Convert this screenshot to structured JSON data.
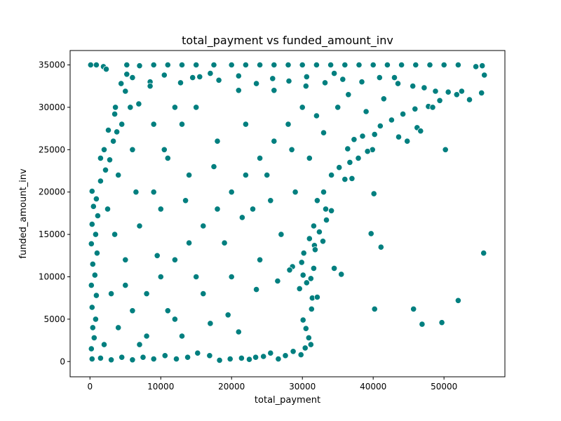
{
  "chart_data": {
    "type": "scatter",
    "title": "total_payment vs funded_amount_inv",
    "xlabel": "total_payment",
    "ylabel": "funded_amount_inv",
    "xlim": [
      -2800,
      58600
    ],
    "ylim": [
      -1800,
      36700
    ],
    "xticks": [
      0,
      10000,
      20000,
      30000,
      40000,
      50000
    ],
    "yticks": [
      0,
      5000,
      10000,
      15000,
      20000,
      25000,
      30000,
      35000
    ],
    "grid": false,
    "marker_color": "#007f7f",
    "marker_edge": "#ffffff",
    "points": [
      [
        100,
        35000
      ],
      [
        900,
        35000
      ],
      [
        1900,
        34800
      ],
      [
        2300,
        34500
      ],
      [
        5200,
        35000
      ],
      [
        7000,
        34900
      ],
      [
        9000,
        35000
      ],
      [
        11000,
        35000
      ],
      [
        13000,
        35000
      ],
      [
        15000,
        35000
      ],
      [
        17500,
        35000
      ],
      [
        20000,
        35000
      ],
      [
        22000,
        35000
      ],
      [
        24000,
        35000
      ],
      [
        26000,
        35000
      ],
      [
        28000,
        35000
      ],
      [
        30000,
        35000
      ],
      [
        32000,
        35000
      ],
      [
        34000,
        35000
      ],
      [
        36000,
        35000
      ],
      [
        38000,
        35000
      ],
      [
        40000,
        35000
      ],
      [
        42000,
        35000
      ],
      [
        44000,
        35000
      ],
      [
        46000,
        35000
      ],
      [
        48000,
        35000
      ],
      [
        50000,
        35000
      ],
      [
        52000,
        35000
      ],
      [
        54500,
        34800
      ],
      [
        55400,
        34900
      ],
      [
        6000,
        33500
      ],
      [
        8500,
        33000
      ],
      [
        10500,
        33800
      ],
      [
        12800,
        32900
      ],
      [
        15500,
        33600
      ],
      [
        18200,
        33200
      ],
      [
        21000,
        33700
      ],
      [
        23500,
        32800
      ],
      [
        25800,
        33400
      ],
      [
        28100,
        33100
      ],
      [
        30600,
        33600
      ],
      [
        33200,
        32900
      ],
      [
        35700,
        33300
      ],
      [
        38400,
        33000
      ],
      [
        40900,
        33500
      ],
      [
        43500,
        32800
      ],
      [
        45600,
        32500
      ],
      [
        47200,
        32300
      ],
      [
        48800,
        31900
      ],
      [
        50600,
        31800
      ],
      [
        52500,
        31900
      ],
      [
        55300,
        31700
      ],
      [
        55700,
        33800
      ],
      [
        49400,
        30800
      ],
      [
        51800,
        31500
      ],
      [
        53600,
        30900
      ],
      [
        47800,
        30100
      ],
      [
        45900,
        29800
      ],
      [
        44200,
        29200
      ],
      [
        42600,
        28500
      ],
      [
        41000,
        27800
      ],
      [
        43600,
        26500
      ],
      [
        44800,
        26000
      ],
      [
        46200,
        27600
      ],
      [
        46700,
        27200
      ],
      [
        48400,
        30000
      ],
      [
        40200,
        26800
      ],
      [
        38500,
        26600
      ],
      [
        37300,
        26200
      ],
      [
        36400,
        25100
      ],
      [
        39900,
        25000
      ],
      [
        39200,
        24800
      ],
      [
        37900,
        24000
      ],
      [
        36700,
        23500
      ],
      [
        35200,
        22900
      ],
      [
        34100,
        22000
      ],
      [
        36000,
        21500
      ],
      [
        37000,
        21600
      ],
      [
        33000,
        20000
      ],
      [
        32100,
        19000
      ],
      [
        33300,
        18000
      ],
      [
        34100,
        17800
      ],
      [
        33400,
        16700
      ],
      [
        31600,
        16000
      ],
      [
        32400,
        15300
      ],
      [
        31000,
        14500
      ],
      [
        32900,
        14200
      ],
      [
        31700,
        13700
      ],
      [
        30200,
        12800
      ],
      [
        31800,
        13200
      ],
      [
        29900,
        11700
      ],
      [
        28600,
        11200
      ],
      [
        28200,
        10800
      ],
      [
        30100,
        10200
      ],
      [
        31600,
        11000
      ],
      [
        31200,
        9800
      ],
      [
        30600,
        9300
      ],
      [
        29600,
        8600
      ],
      [
        31400,
        7500
      ],
      [
        32100,
        7600
      ],
      [
        31300,
        6200
      ],
      [
        30100,
        4900
      ],
      [
        30500,
        3900
      ],
      [
        30900,
        2800
      ],
      [
        31200,
        2000
      ],
      [
        30400,
        1600
      ],
      [
        29800,
        800
      ],
      [
        28700,
        1200
      ],
      [
        27600,
        700
      ],
      [
        26600,
        300
      ],
      [
        25500,
        1000
      ],
      [
        24500,
        600
      ],
      [
        23400,
        500
      ],
      [
        22500,
        250
      ],
      [
        21400,
        400
      ],
      [
        19800,
        300
      ],
      [
        18300,
        150
      ],
      [
        16900,
        700
      ],
      [
        15200,
        1000
      ],
      [
        13800,
        500
      ],
      [
        12200,
        300
      ],
      [
        10600,
        700
      ],
      [
        9000,
        300
      ],
      [
        7500,
        500
      ],
      [
        6000,
        200
      ],
      [
        4500,
        500
      ],
      [
        3000,
        200
      ],
      [
        1500,
        400
      ],
      [
        300,
        300
      ],
      [
        200,
        1500
      ],
      [
        600,
        2800
      ],
      [
        400,
        4000
      ],
      [
        800,
        5000
      ],
      [
        300,
        6400
      ],
      [
        900,
        7800
      ],
      [
        200,
        9000
      ],
      [
        700,
        10200
      ],
      [
        400,
        11500
      ],
      [
        1000,
        12800
      ],
      [
        200,
        13900
      ],
      [
        800,
        15000
      ],
      [
        300,
        16200
      ],
      [
        1100,
        17200
      ],
      [
        500,
        18300
      ],
      [
        900,
        19200
      ],
      [
        300,
        20100
      ],
      [
        1500,
        21300
      ],
      [
        2200,
        22600
      ],
      [
        2800,
        23800
      ],
      [
        2000,
        25000
      ],
      [
        3300,
        26000
      ],
      [
        3800,
        27100
      ],
      [
        2600,
        27300
      ],
      [
        4500,
        28000
      ],
      [
        3500,
        29200
      ],
      [
        5700,
        30000
      ],
      [
        6900,
        30400
      ],
      [
        5000,
        31900
      ],
      [
        4400,
        32800
      ],
      [
        3600,
        30000
      ],
      [
        5200,
        33900
      ],
      [
        34500,
        11000
      ],
      [
        35500,
        10300
      ],
      [
        39700,
        15100
      ],
      [
        40100,
        19800
      ],
      [
        40200,
        6200
      ],
      [
        41100,
        13500
      ],
      [
        45700,
        6200
      ],
      [
        46900,
        4400
      ],
      [
        49700,
        4600
      ],
      [
        50200,
        25000
      ],
      [
        52000,
        7200
      ],
      [
        55600,
        12800
      ],
      [
        2000,
        2000
      ],
      [
        4000,
        4000
      ],
      [
        6000,
        6000
      ],
      [
        8000,
        8000
      ],
      [
        10000,
        10000
      ],
      [
        12000,
        12000
      ],
      [
        14000,
        14000
      ],
      [
        16000,
        16000
      ],
      [
        18000,
        18000
      ],
      [
        20000,
        20000
      ],
      [
        22000,
        22000
      ],
      [
        24000,
        24000
      ],
      [
        26000,
        26000
      ],
      [
        28000,
        28000
      ],
      [
        30000,
        30000
      ],
      [
        3000,
        8000
      ],
      [
        5000,
        12000
      ],
      [
        7000,
        16000
      ],
      [
        9000,
        20000
      ],
      [
        11000,
        24000
      ],
      [
        13000,
        28000
      ],
      [
        15000,
        30000
      ],
      [
        8000,
        3000
      ],
      [
        12000,
        5000
      ],
      [
        16000,
        8000
      ],
      [
        20000,
        10000
      ],
      [
        24000,
        12000
      ],
      [
        27000,
        15000
      ],
      [
        29000,
        20000
      ],
      [
        31000,
        24000
      ],
      [
        33000,
        27000
      ],
      [
        35000,
        30000
      ],
      [
        10000,
        18000
      ],
      [
        14000,
        22000
      ],
      [
        18000,
        26000
      ],
      [
        22000,
        28000
      ],
      [
        26000,
        32000
      ],
      [
        6000,
        25000
      ],
      [
        9000,
        28000
      ],
      [
        12000,
        30000
      ],
      [
        17000,
        34000
      ],
      [
        21000,
        32000
      ],
      [
        25000,
        22000
      ],
      [
        23000,
        18000
      ],
      [
        19000,
        14000
      ],
      [
        15000,
        10000
      ],
      [
        11000,
        6000
      ],
      [
        7000,
        2000
      ],
      [
        5000,
        9000
      ],
      [
        3500,
        15000
      ],
      [
        2500,
        18000
      ],
      [
        1500,
        24000
      ],
      [
        10500,
        25000
      ],
      [
        13500,
        19000
      ],
      [
        17500,
        23000
      ],
      [
        21500,
        17000
      ],
      [
        25500,
        19000
      ],
      [
        28500,
        25000
      ],
      [
        32000,
        29000
      ],
      [
        36500,
        31500
      ],
      [
        39000,
        29500
      ],
      [
        41500,
        31000
      ],
      [
        43000,
        33500
      ],
      [
        19500,
        5500
      ],
      [
        23500,
        8500
      ],
      [
        26500,
        9500
      ],
      [
        21000,
        3500
      ],
      [
        17000,
        4500
      ],
      [
        13000,
        3000
      ],
      [
        9500,
        12500
      ],
      [
        6500,
        20000
      ],
      [
        4000,
        22000
      ],
      [
        8500,
        32500
      ],
      [
        14500,
        33500
      ],
      [
        30500,
        32500
      ],
      [
        34500,
        34000
      ]
    ]
  }
}
